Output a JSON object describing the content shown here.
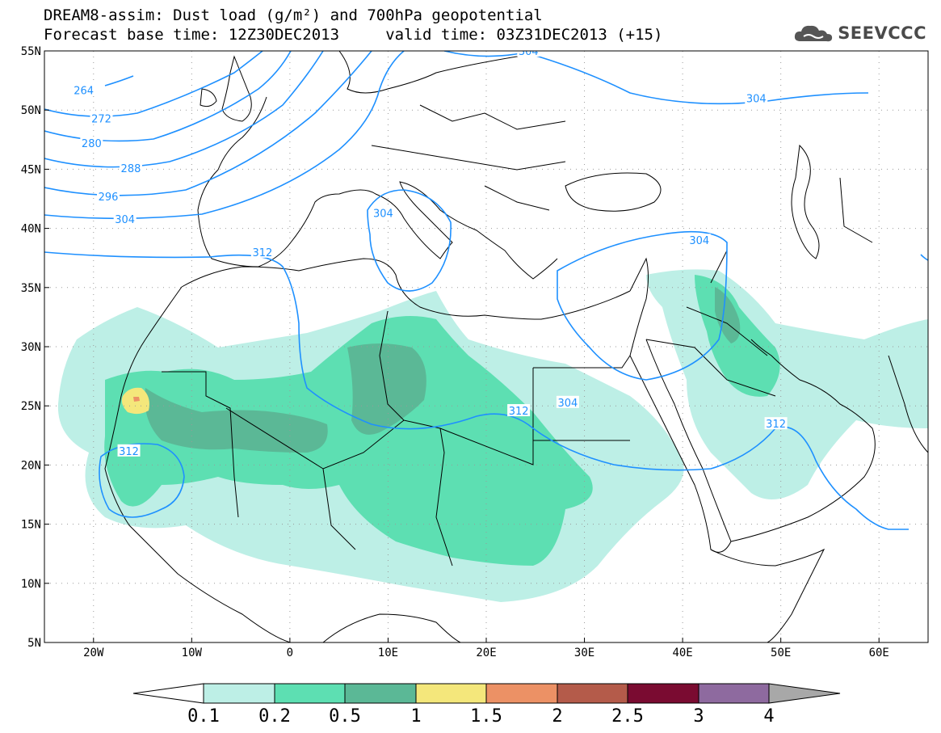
{
  "title": {
    "line1": "DREAM8-assim: Dust load (g/m²) and 700hPa geopotential",
    "line2": "Forecast base time: 12Z30DEC2013     valid time: 03Z31DEC2013 (+15)"
  },
  "logo": {
    "text": "SEEVCCC",
    "icon": "cloud-logo-icon"
  },
  "map": {
    "lon_range": [
      -25,
      65
    ],
    "lat_range": [
      5,
      55
    ],
    "lon_ticks": [
      {
        "value": -20,
        "label": "20W"
      },
      {
        "value": -10,
        "label": "10W"
      },
      {
        "value": 0,
        "label": "0"
      },
      {
        "value": 10,
        "label": "10E"
      },
      {
        "value": 20,
        "label": "20E"
      },
      {
        "value": 30,
        "label": "30E"
      },
      {
        "value": 40,
        "label": "40E"
      },
      {
        "value": 50,
        "label": "50E"
      },
      {
        "value": 60,
        "label": "60E"
      }
    ],
    "lat_ticks": [
      {
        "value": 55,
        "label": "55N"
      },
      {
        "value": 50,
        "label": "50N"
      },
      {
        "value": 45,
        "label": "45N"
      },
      {
        "value": 40,
        "label": "40N"
      },
      {
        "value": 35,
        "label": "35N"
      },
      {
        "value": 30,
        "label": "30N"
      },
      {
        "value": 25,
        "label": "25N"
      },
      {
        "value": 20,
        "label": "20N"
      },
      {
        "value": 15,
        "label": "15N"
      },
      {
        "value": 10,
        "label": "10N"
      },
      {
        "value": 5,
        "label": "5N"
      }
    ],
    "contour_labels": [
      {
        "label": "264",
        "lon": -21,
        "lat": 51.7
      },
      {
        "label": "272",
        "lon": -19.2,
        "lat": 49.3
      },
      {
        "label": "280",
        "lon": -20.2,
        "lat": 47.2
      },
      {
        "label": "288",
        "lon": -16.2,
        "lat": 45.1
      },
      {
        "label": "296",
        "lon": -18.5,
        "lat": 42.7
      },
      {
        "label": "304",
        "lon": -16.8,
        "lat": 40.8
      },
      {
        "label": "312",
        "lon": -2.8,
        "lat": 38.0
      },
      {
        "label": "304",
        "lon": 9.5,
        "lat": 41.3
      },
      {
        "label": "304",
        "lon": 24.3,
        "lat": 55
      },
      {
        "label": "304",
        "lon": 47.5,
        "lat": 51.0
      },
      {
        "label": "304",
        "lon": 41.7,
        "lat": 39.0
      },
      {
        "label": "304",
        "lon": 28.3,
        "lat": 25.3
      },
      {
        "label": "312",
        "lon": 23.3,
        "lat": 24.6
      },
      {
        "label": "312",
        "lon": 49.5,
        "lat": 23.5
      },
      {
        "label": "312",
        "lon": -16.4,
        "lat": 21.2
      }
    ]
  },
  "colors": {
    "c01": "#bdefe6",
    "c02": "#5ddfb2",
    "c05": "#5bb896",
    "c1": "#f4e77b",
    "c15": "#ec9165",
    "c2": "#b45b4a",
    "c25": "#7a0b31",
    "c3": "#8e6a9f",
    "c4": "#a8a8a8",
    "contour": "#1e90ff"
  },
  "colorbar": {
    "labels": [
      "0.1",
      "0.2",
      "0.5",
      "1",
      "1.5",
      "2",
      "2.5",
      "3",
      "4"
    ]
  }
}
